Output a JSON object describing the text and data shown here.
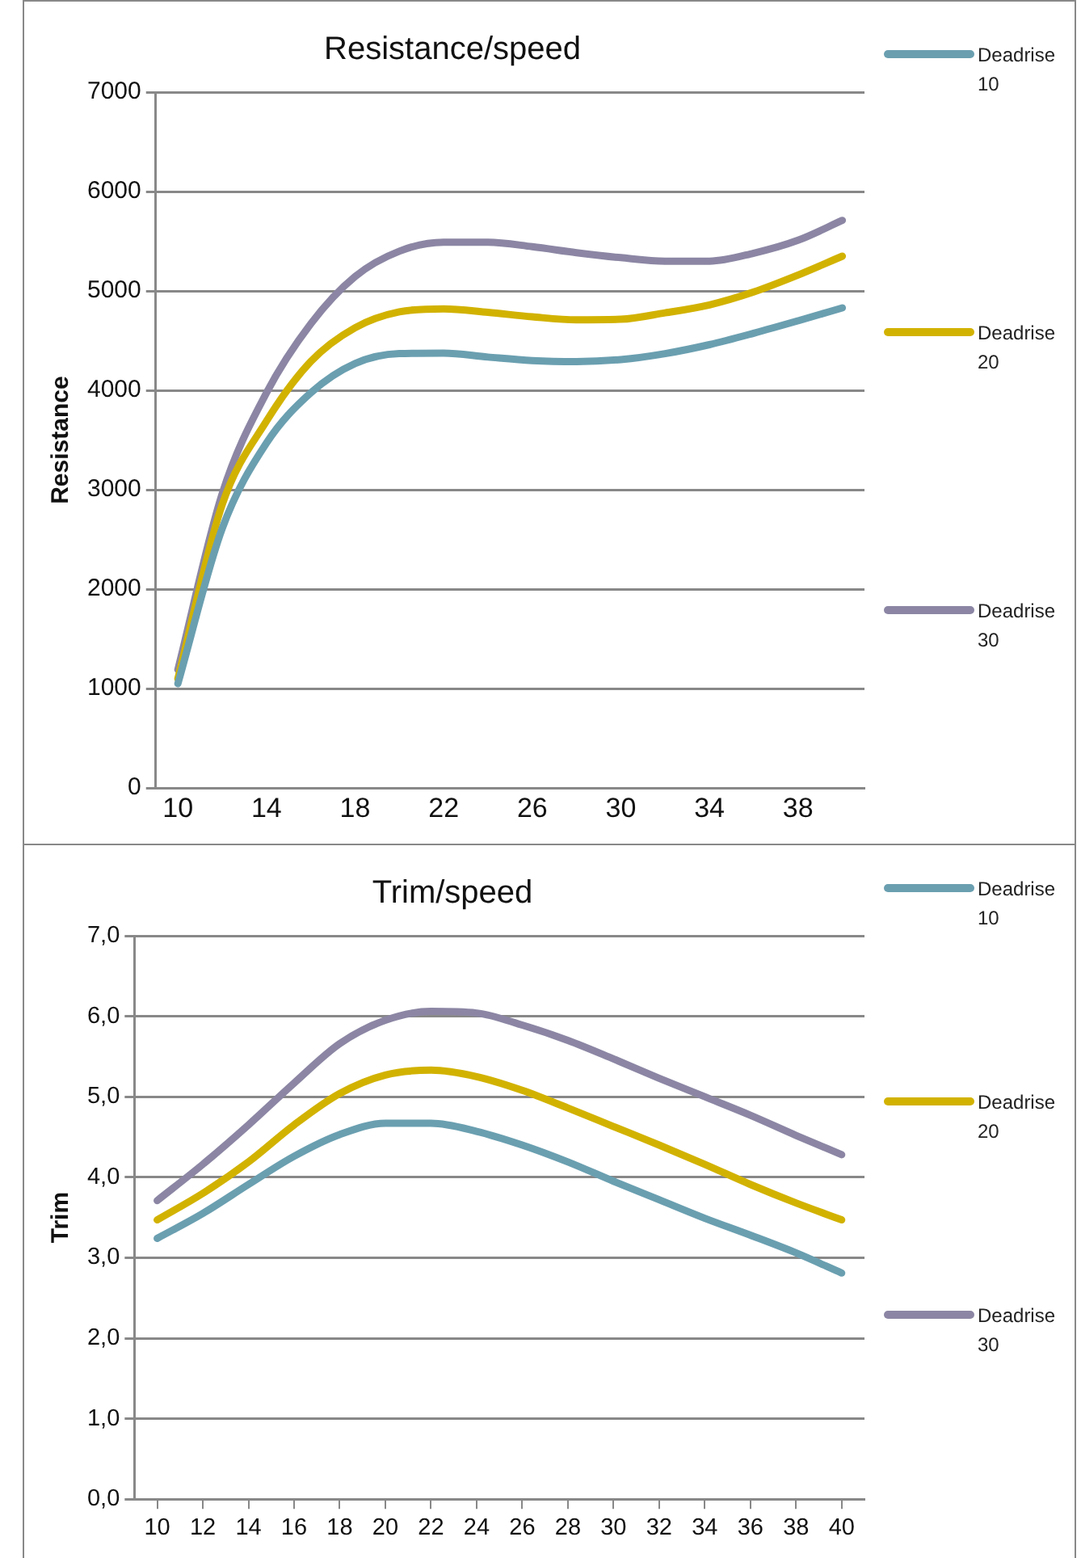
{
  "chart_data": [
    {
      "type": "line",
      "title": "Resistance/speed",
      "ylabel": "Resistance",
      "categories": [
        "10",
        null,
        "14",
        null,
        "18",
        null,
        "22",
        null,
        "26",
        null,
        "30",
        null,
        "34",
        null,
        "38",
        null
      ],
      "series": [
        {
          "name": "Deadrise 10",
          "color": "#6a9fb0",
          "values": [
            1050,
            2610,
            3470,
            3975,
            4270,
            4370,
            4375,
            4335,
            4300,
            4290,
            4310,
            4370,
            4460,
            4575,
            4700,
            4830
          ]
        },
        {
          "name": "Deadrise 20",
          "color": "#d2b200",
          "values": [
            1100,
            2850,
            3690,
            4290,
            4630,
            4790,
            4820,
            4785,
            4740,
            4710,
            4715,
            4780,
            4860,
            4990,
            5160,
            5350
          ]
        },
        {
          "name": "Deadrise 30",
          "color": "#8c86a4",
          "values": [
            1190,
            2960,
            3975,
            4670,
            5145,
            5400,
            5490,
            5490,
            5445,
            5385,
            5335,
            5300,
            5300,
            5380,
            5510,
            5710
          ]
        }
      ],
      "ylim": [
        0,
        7000
      ],
      "yticks": [
        0,
        1000,
        2000,
        3000,
        4000,
        5000,
        6000,
        7000
      ],
      "grid": "y",
      "legend": "right",
      "marker": "none",
      "line_style": "solid"
    },
    {
      "type": "line",
      "title": "Trim/speed",
      "ylabel": "Trim",
      "categories": [
        "10",
        "12",
        "14",
        "16",
        "18",
        "20",
        "22",
        "24",
        "26",
        "28",
        "30",
        "32",
        "34",
        "36",
        "38",
        "40"
      ],
      "series": [
        {
          "name": "Deadrise 10",
          "color": "#6a9fb0",
          "values": [
            3.24,
            3.55,
            3.91,
            4.26,
            4.53,
            4.67,
            4.67,
            4.57,
            4.4,
            4.19,
            3.95,
            3.72,
            3.49,
            3.28,
            3.06,
            2.81
          ]
        },
        {
          "name": "Deadrise 20",
          "color": "#d2b200",
          "values": [
            3.47,
            3.8,
            4.19,
            4.65,
            5.04,
            5.27,
            5.33,
            5.25,
            5.08,
            4.86,
            4.63,
            4.4,
            4.16,
            3.91,
            3.68,
            3.47
          ]
        },
        {
          "name": "Deadrise 30",
          "color": "#8c86a4",
          "values": [
            3.71,
            4.16,
            4.65,
            5.17,
            5.66,
            5.95,
            6.06,
            6.04,
            5.89,
            5.7,
            5.47,
            5.23,
            5.0,
            4.77,
            4.52,
            4.28
          ]
        }
      ],
      "ylim": [
        0,
        7
      ],
      "yticks": [
        {
          "value": 0,
          "label": "0,0"
        },
        {
          "value": 1,
          "label": "1,0"
        },
        {
          "value": 2,
          "label": "2,0"
        },
        {
          "value": 3,
          "label": "3,0"
        },
        {
          "value": 4,
          "label": "4,0"
        },
        {
          "value": 5,
          "label": "5,0"
        },
        {
          "value": 6,
          "label": "6,0"
        },
        {
          "value": 7,
          "label": "7,0"
        }
      ],
      "grid": "y",
      "legend": "right",
      "marker": "none",
      "line_style": "solid"
    }
  ]
}
